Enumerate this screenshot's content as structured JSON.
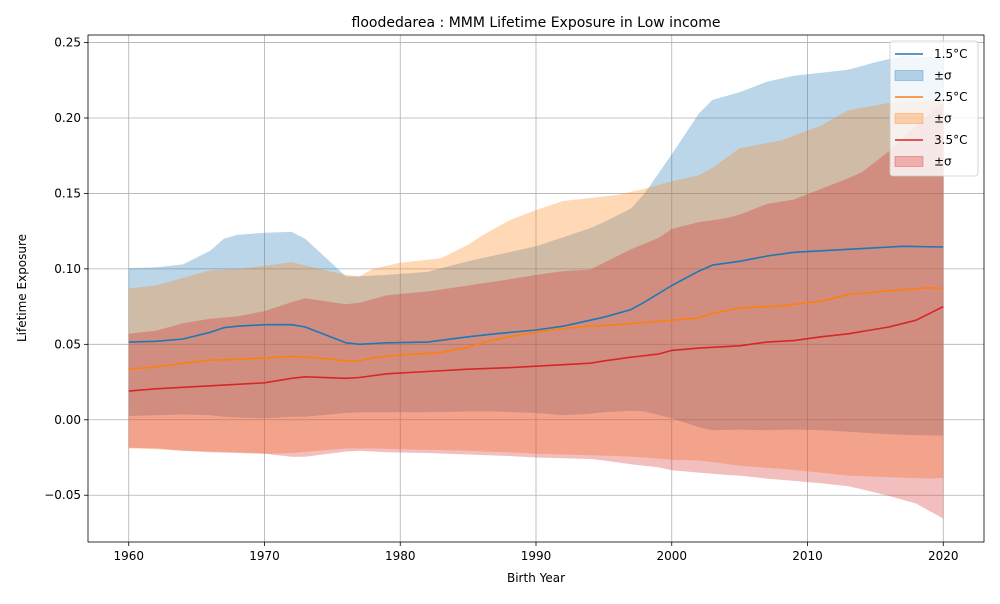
{
  "chart_data": {
    "type": "area",
    "title": "floodedarea : MMM Lifetime Exposure in Low income",
    "xlabel": "Birth Year",
    "ylabel": "Lifetime Exposure",
    "xlim": [
      1957,
      2023
    ],
    "ylim": [
      -0.081,
      0.255
    ],
    "xticks": [
      1960,
      1970,
      1980,
      1990,
      2000,
      2010,
      2020
    ],
    "yticks": [
      -0.05,
      0.0,
      0.05,
      0.1,
      0.15,
      0.2,
      0.25
    ],
    "grid": true,
    "legend_position": "top-right",
    "legend": [
      "1.5°C",
      "±σ",
      "2.5°C",
      "±σ",
      "3.5°C",
      "±σ"
    ],
    "series": [
      {
        "name": "1.5°C",
        "color": "#1f77b4",
        "band_label": "±σ",
        "points": [
          [
            1960,
            0.0515,
            0.0025,
            0.1005
          ],
          [
            1962,
            0.052,
            0.003,
            0.101
          ],
          [
            1964,
            0.0535,
            0.0035,
            0.103
          ],
          [
            1966,
            0.058,
            0.003,
            0.112
          ],
          [
            1967,
            0.061,
            0.002,
            0.12
          ],
          [
            1968,
            0.062,
            0.0015,
            0.1225
          ],
          [
            1970,
            0.063,
            0.001,
            0.124
          ],
          [
            1972,
            0.063,
            0.002,
            0.1245
          ],
          [
            1973,
            0.0615,
            0.002,
            0.12
          ],
          [
            1976,
            0.051,
            0.0045,
            0.095
          ],
          [
            1977,
            0.05,
            0.005,
            0.095
          ],
          [
            1979,
            0.051,
            0.005,
            0.096
          ],
          [
            1982,
            0.0515,
            0.005,
            0.098
          ],
          [
            1985,
            0.055,
            0.0055,
            0.105
          ],
          [
            1987,
            0.057,
            0.0055,
            0.109
          ],
          [
            1990,
            0.0595,
            0.0045,
            0.115
          ],
          [
            1992,
            0.062,
            0.003,
            0.121
          ],
          [
            1994,
            0.066,
            0.004,
            0.127
          ],
          [
            1995,
            0.068,
            0.005,
            0.131
          ],
          [
            1997,
            0.073,
            0.006,
            0.14
          ],
          [
            1998,
            0.078,
            0.0055,
            0.15
          ],
          [
            2000,
            0.089,
            0.001,
            0.176
          ],
          [
            2002,
            0.0985,
            -0.005,
            0.203
          ],
          [
            2003,
            0.1025,
            -0.007,
            0.212
          ],
          [
            2005,
            0.105,
            -0.0065,
            0.217
          ],
          [
            2007,
            0.1085,
            -0.007,
            0.224
          ],
          [
            2009,
            0.111,
            -0.0065,
            0.228
          ],
          [
            2011,
            0.112,
            -0.007,
            0.23
          ],
          [
            2013,
            0.113,
            -0.008,
            0.232
          ],
          [
            2015,
            0.114,
            -0.009,
            0.237
          ],
          [
            2017,
            0.115,
            -0.01,
            0.241
          ],
          [
            2020,
            0.1145,
            -0.0105,
            0.24
          ]
        ]
      },
      {
        "name": "2.5°C",
        "color": "#ff7f0e",
        "band_label": "±σ",
        "points": [
          [
            1960,
            0.0335,
            -0.019,
            0.087
          ],
          [
            1962,
            0.035,
            -0.0195,
            0.089
          ],
          [
            1964,
            0.0375,
            -0.0205,
            0.094
          ],
          [
            1966,
            0.0395,
            -0.021,
            0.099
          ],
          [
            1968,
            0.04,
            -0.0215,
            0.1
          ],
          [
            1970,
            0.041,
            -0.0225,
            0.102
          ],
          [
            1972,
            0.042,
            -0.022,
            0.1045
          ],
          [
            1974,
            0.041,
            -0.0205,
            0.1
          ],
          [
            1976,
            0.039,
            -0.019,
            0.096
          ],
          [
            1977,
            0.039,
            -0.019,
            0.095
          ],
          [
            1978,
            0.041,
            -0.019,
            0.1
          ],
          [
            1980,
            0.043,
            -0.0195,
            0.104
          ],
          [
            1983,
            0.0445,
            -0.02,
            0.107
          ],
          [
            1985,
            0.048,
            -0.0205,
            0.116
          ],
          [
            1986,
            0.051,
            -0.021,
            0.122
          ],
          [
            1988,
            0.055,
            -0.0215,
            0.132
          ],
          [
            1990,
            0.058,
            -0.0225,
            0.139
          ],
          [
            1992,
            0.0605,
            -0.023,
            0.145
          ],
          [
            1994,
            0.062,
            -0.0235,
            0.147
          ],
          [
            1996,
            0.063,
            -0.024,
            0.149
          ],
          [
            1998,
            0.0645,
            -0.025,
            0.153
          ],
          [
            2000,
            0.066,
            -0.0265,
            0.158
          ],
          [
            2002,
            0.0675,
            -0.027,
            0.162
          ],
          [
            2003,
            0.0705,
            -0.028,
            0.167
          ],
          [
            2005,
            0.074,
            -0.0305,
            0.18
          ],
          [
            2008,
            0.0755,
            -0.0325,
            0.185
          ],
          [
            2011,
            0.0785,
            -0.035,
            0.195
          ],
          [
            2013,
            0.083,
            -0.037,
            0.205
          ],
          [
            2016,
            0.0855,
            -0.038,
            0.21
          ],
          [
            2019,
            0.0875,
            -0.039,
            0.212
          ],
          [
            2020,
            0.087,
            -0.0385,
            0.213
          ]
        ]
      },
      {
        "name": "3.5°C",
        "color": "#d62728",
        "band_label": "±σ",
        "points": [
          [
            1960,
            0.019,
            -0.0185,
            0.057
          ],
          [
            1962,
            0.0205,
            -0.019,
            0.059
          ],
          [
            1964,
            0.0215,
            -0.0205,
            0.064
          ],
          [
            1966,
            0.0225,
            -0.0215,
            0.067
          ],
          [
            1968,
            0.0235,
            -0.022,
            0.0685
          ],
          [
            1970,
            0.0245,
            -0.0225,
            0.072
          ],
          [
            1972,
            0.0275,
            -0.0245,
            0.078
          ],
          [
            1973,
            0.0285,
            -0.0245,
            0.0805
          ],
          [
            1976,
            0.0275,
            -0.021,
            0.0765
          ],
          [
            1977,
            0.028,
            -0.0205,
            0.0775
          ],
          [
            1979,
            0.0305,
            -0.0215,
            0.0825
          ],
          [
            1982,
            0.032,
            -0.022,
            0.085
          ],
          [
            1985,
            0.0335,
            -0.023,
            0.089
          ],
          [
            1988,
            0.0345,
            -0.024,
            0.093
          ],
          [
            1990,
            0.0355,
            -0.025,
            0.096
          ],
          [
            1992,
            0.0365,
            -0.0255,
            0.0985
          ],
          [
            1994,
            0.0375,
            -0.026,
            0.0995
          ],
          [
            1995,
            0.039,
            -0.027,
            0.104
          ],
          [
            1997,
            0.0415,
            -0.0295,
            0.113
          ],
          [
            1999,
            0.0435,
            -0.0315,
            0.1205
          ],
          [
            2000,
            0.046,
            -0.0335,
            0.1265
          ],
          [
            2002,
            0.0475,
            -0.035,
            0.131
          ],
          [
            2004,
            0.0485,
            -0.0365,
            0.1335
          ],
          [
            2005,
            0.049,
            -0.037,
            0.136
          ],
          [
            2007,
            0.0515,
            -0.039,
            0.143
          ],
          [
            2009,
            0.0525,
            -0.0405,
            0.146
          ],
          [
            2011,
            0.055,
            -0.042,
            0.153
          ],
          [
            2013,
            0.057,
            -0.044,
            0.16
          ],
          [
            2014,
            0.0585,
            -0.046,
            0.164
          ],
          [
            2016,
            0.0615,
            -0.0505,
            0.178
          ],
          [
            2018,
            0.066,
            -0.0555,
            0.195
          ],
          [
            2020,
            0.075,
            -0.0655,
            0.21
          ]
        ]
      }
    ]
  }
}
